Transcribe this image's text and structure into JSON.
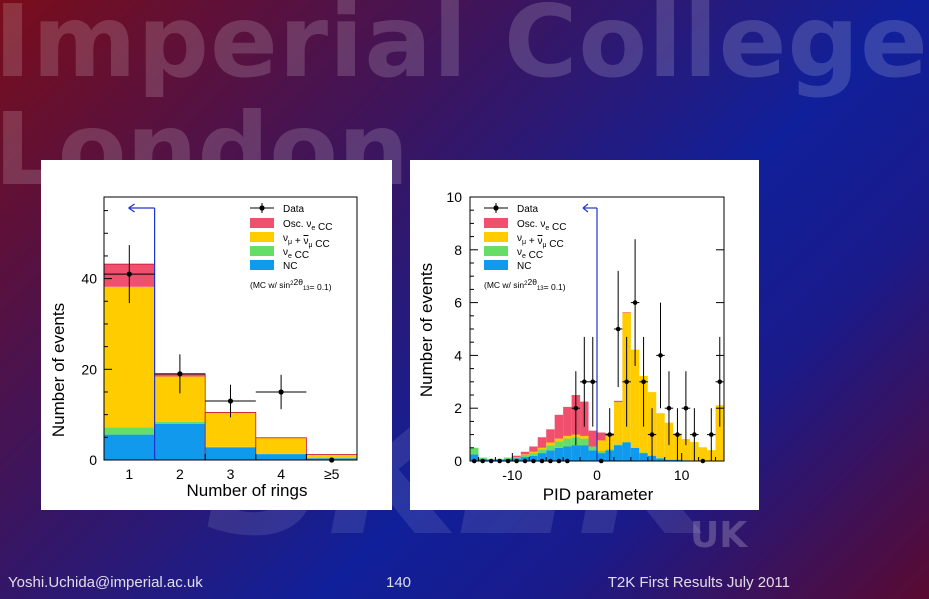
{
  "watermark": {
    "line1": "Imperial College",
    "line2": "London",
    "line3": "SK2K",
    "line4": "UK"
  },
  "footer": {
    "email": "Yoshi.Uchida@imperial.ac.uk",
    "page": "140",
    "title": "T2K First Results July 2011"
  },
  "colors": {
    "osc": "#f0506e",
    "numu": "#ffcc00",
    "nue": "#66dd66",
    "nc": "#1199ee",
    "cut": "#2233cc"
  },
  "legend": {
    "data": "Data",
    "osc_label": "Osc. ",
    "osc_sym": "ν",
    "osc_sub": "e",
    "osc_suffix": " CC",
    "numu_sym": "ν",
    "numu_sub": "μ",
    "numu_plus": " + ",
    "numu_bar_sym": "ν",
    "numu_bar_sub": "μ",
    "numu_suffix": " CC",
    "nue_sym": "ν",
    "nue_sub": "e",
    "nue_suffix": " CC",
    "nc": "NC",
    "mc_pre": "(MC w/ sin",
    "mc_sup": "2",
    "mc_mid": "2θ",
    "mc_sub": "13",
    "mc_post": "= 0.1)"
  },
  "chart_data": [
    {
      "type": "bar",
      "xlabel": "Number of rings",
      "ylabel": "Number of events",
      "categories": [
        "1",
        "2",
        "3",
        "4",
        "≥5"
      ],
      "ylim": [
        0,
        58
      ],
      "yticks": [
        0,
        20,
        40
      ],
      "cut_x": 1.5,
      "series": [
        {
          "name": "NC",
          "values": [
            5.6,
            8.0,
            2.8,
            1.3,
            0.4
          ]
        },
        {
          "name": "νe CC",
          "values": [
            1.6,
            0.4,
            0.1,
            0.05,
            0.0
          ]
        },
        {
          "name": "νμ + ν̄μ CC",
          "values": [
            31.0,
            10.0,
            7.5,
            3.5,
            0.8
          ]
        },
        {
          "name": "Osc. νe CC",
          "values": [
            5.0,
            0.6,
            0.1,
            0.05,
            0.0
          ]
        }
      ],
      "data_points": {
        "values": [
          41,
          19,
          13,
          15,
          0
        ],
        "err_low": [
          6.4,
          4.3,
          3.6,
          3.8,
          0
        ],
        "err_high": [
          6.4,
          4.3,
          3.6,
          3.8,
          0
        ]
      }
    },
    {
      "type": "bar",
      "xlabel": "PID parameter",
      "ylabel": "Number of events",
      "xlim": [
        -15,
        15
      ],
      "ylim": [
        0,
        10
      ],
      "xticks": [
        -10,
        0,
        10
      ],
      "yticks": [
        0,
        2,
        4,
        6,
        8,
        10
      ],
      "cut_x": 0,
      "bin_edges": [
        -15,
        -14,
        -13,
        -12,
        -11,
        -10,
        -9,
        -8,
        -7,
        -6,
        -5,
        -4,
        -3,
        -2,
        -1,
        0,
        1,
        2,
        3,
        4,
        5,
        6,
        7,
        8,
        9,
        10,
        11,
        12,
        13,
        14,
        15
      ],
      "series": [
        {
          "name": "NC",
          "values": [
            0.25,
            0.08,
            0.05,
            0.05,
            0.08,
            0.1,
            0.15,
            0.2,
            0.3,
            0.4,
            0.5,
            0.55,
            0.6,
            0.6,
            0.4,
            0.3,
            0.4,
            0.6,
            0.7,
            0.5,
            0.3,
            0.2,
            0.1,
            0.05,
            0.05,
            0.03,
            0.02,
            0.02,
            0.01,
            0.01
          ]
        },
        {
          "name": "νe CC",
          "values": [
            0.25,
            0.05,
            0.03,
            0.03,
            0.05,
            0.05,
            0.08,
            0.1,
            0.15,
            0.2,
            0.25,
            0.3,
            0.3,
            0.25,
            0.15,
            0.08,
            0.05,
            0.03,
            0.02,
            0.02,
            0.02,
            0.01,
            0.01,
            0.0,
            0.0,
            0.0,
            0.0,
            0.0,
            0.0,
            0.0
          ]
        },
        {
          "name": "νμ + ν̄μ CC",
          "values": [
            0.0,
            0.0,
            0.0,
            0.0,
            0.0,
            0.0,
            0.02,
            0.05,
            0.05,
            0.1,
            0.1,
            0.1,
            0.1,
            0.1,
            0.0,
            0.4,
            0.5,
            1.6,
            4.9,
            3.7,
            2.9,
            2.4,
            1.7,
            1.4,
            1.0,
            0.8,
            0.7,
            0.5,
            0.4,
            2.1
          ]
        },
        {
          "name": "Osc. νe CC",
          "values": [
            0.0,
            0.0,
            0.0,
            0.0,
            0.0,
            0.05,
            0.1,
            0.2,
            0.4,
            0.5,
            0.9,
            1.1,
            1.5,
            1.3,
            0.6,
            0.3,
            0.1,
            0.05,
            0.02,
            0.0,
            0.0,
            0.0,
            0.0,
            0.0,
            0.0,
            0.0,
            0.0,
            0.0,
            0.0,
            0.0
          ]
        }
      ],
      "data_points": {
        "x": [
          -14.5,
          -13.5,
          -12.5,
          -11.5,
          -10.5,
          -9.5,
          -8.5,
          -7.5,
          -6.5,
          -5.5,
          -4.5,
          -3.5,
          -2.5,
          -1.5,
          -0.5,
          0.5,
          1.5,
          2.5,
          3.5,
          4.5,
          5.5,
          6.5,
          7.5,
          8.5,
          9.5,
          10.5,
          11.5,
          12.5,
          13.5,
          14.5
        ],
        "values": [
          0,
          0,
          0,
          0,
          0,
          0,
          0,
          0,
          0,
          0,
          0,
          0,
          2,
          3,
          3,
          0,
          1,
          5,
          3,
          6,
          3,
          1,
          4,
          2,
          1,
          2,
          1,
          0,
          1,
          3
        ],
        "err": [
          0,
          0,
          0,
          0,
          0,
          0,
          0,
          0,
          0,
          0,
          0,
          0,
          1.4,
          1.7,
          1.7,
          0,
          1.0,
          2.2,
          1.7,
          2.4,
          1.7,
          1.0,
          2.0,
          1.4,
          1.0,
          1.4,
          1.0,
          0,
          1.0,
          1.7
        ]
      }
    }
  ]
}
